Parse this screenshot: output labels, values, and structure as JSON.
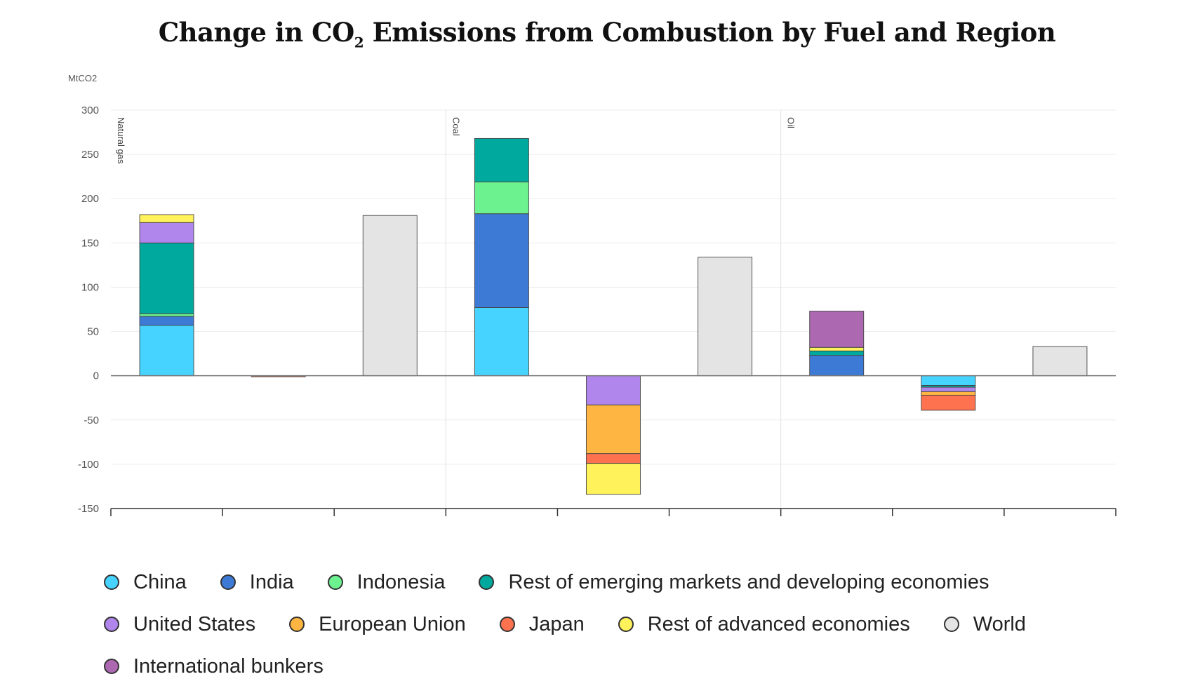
{
  "chart_data": {
    "type": "bar",
    "stacked": true,
    "title_main": "Change in CO",
    "title_sub": "2",
    "title_rest": " Emissions from Combustion by Fuel and Region",
    "ylabel": "MtCO2",
    "ylim": [
      -150,
      300
    ],
    "yticks": [
      300,
      250,
      200,
      150,
      100,
      50,
      0,
      -50,
      -100,
      -150
    ],
    "groups": [
      "Natural gas",
      "Coal",
      "Oil"
    ],
    "legend_placement": "bottom",
    "series": [
      {
        "name": "China",
        "color": "#47d3ff"
      },
      {
        "name": "India",
        "color": "#3d7ad6"
      },
      {
        "name": "Indonesia",
        "color": "#6cf28f"
      },
      {
        "name": "Rest of emerging markets and developing economies",
        "color": "#00a99d"
      },
      {
        "name": "United States",
        "color": "#b086ec"
      },
      {
        "name": "European Union",
        "color": "#ffb541"
      },
      {
        "name": "Japan",
        "color": "#ff7250"
      },
      {
        "name": "Rest of advanced economies",
        "color": "#fff25a"
      },
      {
        "name": "World",
        "color": "#e4e4e4"
      },
      {
        "name": "International bunkers",
        "color": "#ad68b2"
      }
    ],
    "bars": [
      {
        "group": "Natural gas",
        "slot": 0,
        "segments": [
          {
            "series": "China",
            "value": 57
          },
          {
            "series": "India",
            "value": 10
          },
          {
            "series": "Indonesia",
            "value": 3
          },
          {
            "series": "Rest of emerging markets and developing economies",
            "value": 80
          },
          {
            "series": "United States",
            "value": 23
          },
          {
            "series": "Rest of advanced economies",
            "value": 9
          }
        ]
      },
      {
        "group": "Natural gas",
        "slot": 1,
        "segments": [
          {
            "series": "Japan",
            "value": -1
          }
        ]
      },
      {
        "group": "Natural gas",
        "slot": 2,
        "segments": [
          {
            "series": "World",
            "value": 181
          }
        ]
      },
      {
        "group": "Coal",
        "slot": 0,
        "segments": [
          {
            "series": "China",
            "value": 77
          },
          {
            "series": "India",
            "value": 106
          },
          {
            "series": "Indonesia",
            "value": 36
          },
          {
            "series": "Rest of emerging markets and developing economies",
            "value": 49
          }
        ]
      },
      {
        "group": "Coal",
        "slot": 1,
        "segments": [
          {
            "series": "United States",
            "value": -33
          },
          {
            "series": "European Union",
            "value": -55
          },
          {
            "series": "Japan",
            "value": -11
          },
          {
            "series": "Rest of advanced economies",
            "value": -35
          }
        ]
      },
      {
        "group": "Coal",
        "slot": 2,
        "segments": [
          {
            "series": "World",
            "value": 134
          }
        ]
      },
      {
        "group": "Oil",
        "slot": 0,
        "segments": [
          {
            "series": "India",
            "value": 23
          },
          {
            "series": "Rest of emerging markets and developing economies",
            "value": 5
          },
          {
            "series": "Rest of advanced economies",
            "value": 4
          },
          {
            "series": "International bunkers",
            "value": 41
          }
        ]
      },
      {
        "group": "Oil",
        "slot": 1,
        "segments": [
          {
            "series": "China",
            "value": -11
          },
          {
            "series": "Rest of emerging markets and developing economies",
            "value": -2
          },
          {
            "series": "United States",
            "value": -5
          },
          {
            "series": "European Union",
            "value": -4
          },
          {
            "series": "Japan",
            "value": -17
          }
        ]
      },
      {
        "group": "Oil",
        "slot": 2,
        "segments": [
          {
            "series": "World",
            "value": 33
          }
        ]
      }
    ]
  },
  "legend": {
    "rows": [
      [
        "China",
        "India",
        "Indonesia",
        "Rest of emerging markets and developing economies"
      ],
      [
        "United States",
        "European Union",
        "Japan",
        "Rest of advanced economies",
        "World"
      ],
      [
        "International bunkers"
      ]
    ]
  }
}
